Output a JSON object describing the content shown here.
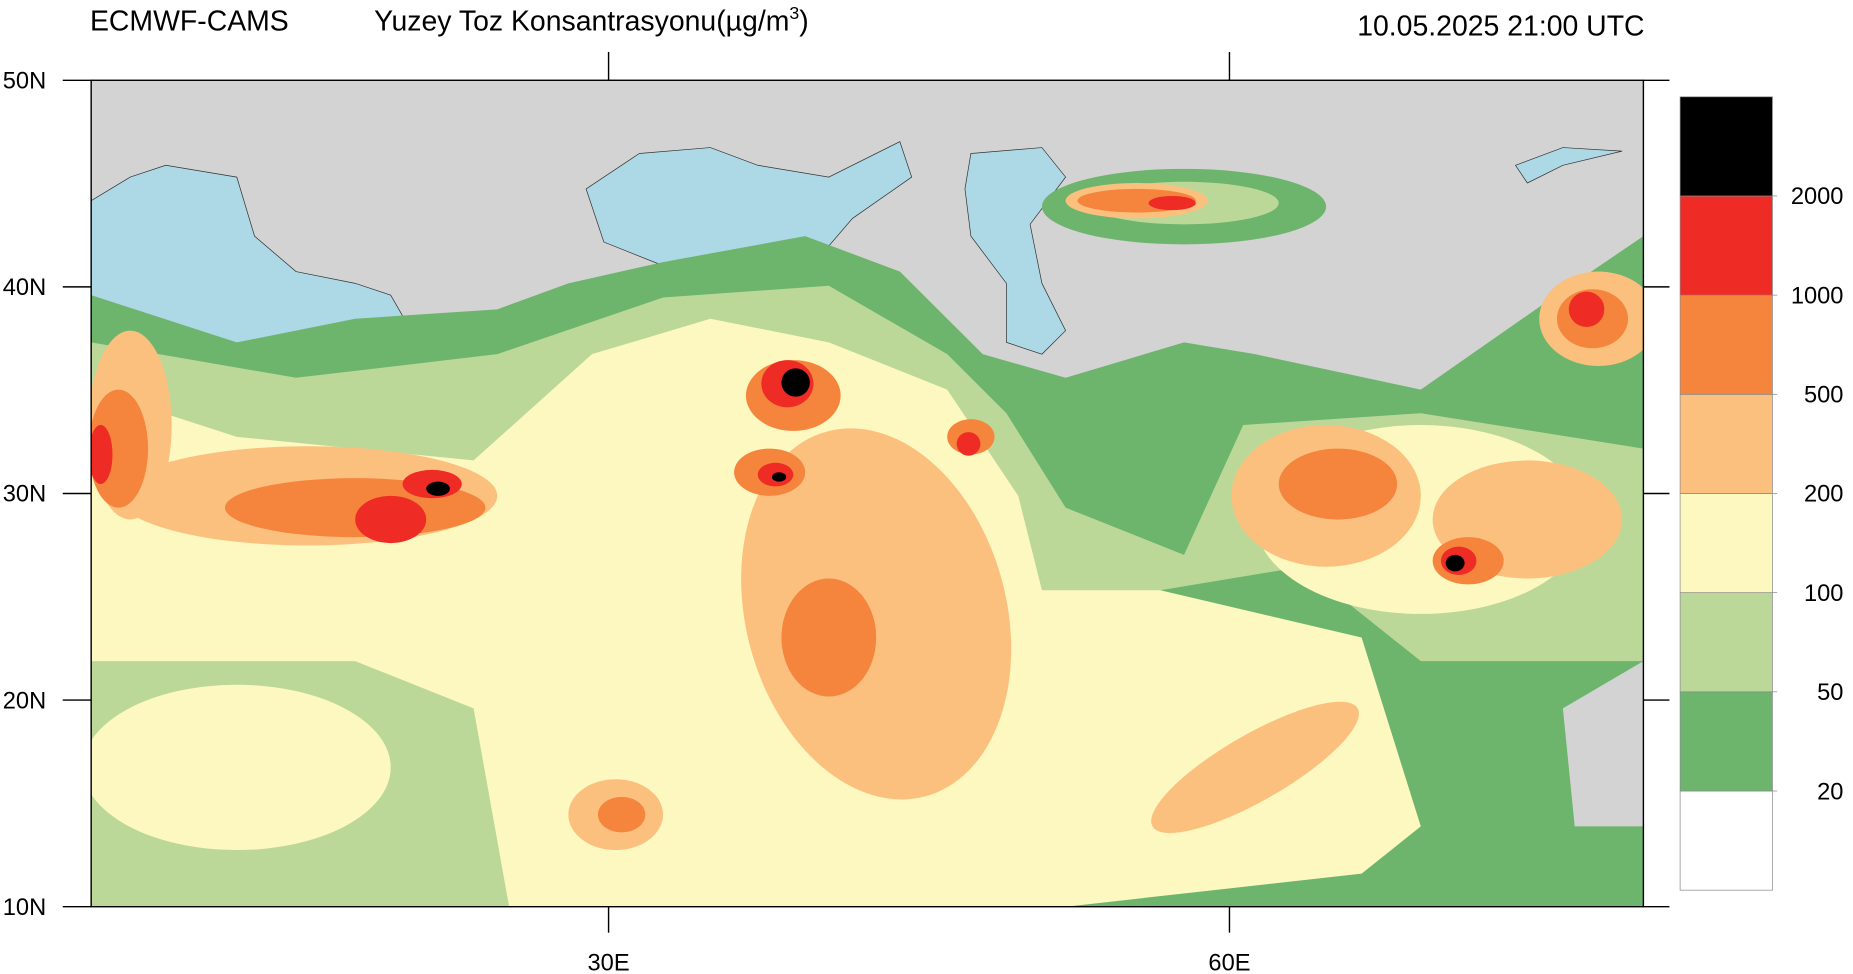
{
  "header": {
    "source": "ECMWF-CAMS",
    "title": "Yuzey Toz Konsantrasyonu(µg/m",
    "title_sup": "3",
    "title_end": ")",
    "time": "10.05.2025 21:00 UTC"
  },
  "map": {
    "lon_range": [
      5,
      80
    ],
    "lat_range": [
      10,
      50
    ],
    "lon_ticks": [
      {
        "value": 30,
        "label": "30E"
      },
      {
        "value": 60,
        "label": "60E"
      }
    ],
    "lat_ticks": [
      {
        "value": 10,
        "label": "10N"
      },
      {
        "value": 20,
        "label": "20N"
      },
      {
        "value": 30,
        "label": "30N"
      },
      {
        "value": 40,
        "label": "40N"
      },
      {
        "value": 50,
        "label": "50N"
      }
    ]
  },
  "colorbar": {
    "levels": [
      20,
      50,
      100,
      200,
      500,
      1000,
      2000
    ],
    "colors": [
      "#ffffff",
      "#6db56d",
      "#bcd898",
      "#fdf8c0",
      "#fbc07e",
      "#f5843d",
      "#ee2b24",
      "#000000"
    ]
  }
}
